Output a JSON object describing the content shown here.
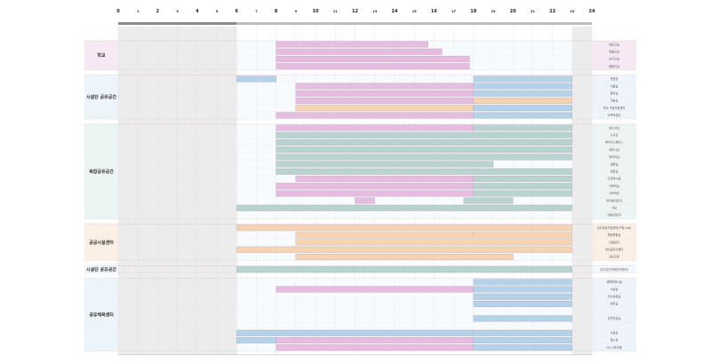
{
  "chart_data": {
    "type": "gantt",
    "x_range": [
      0,
      24
    ],
    "x_ticks": [
      "0",
      "1",
      "2",
      "3",
      "4",
      "5",
      "6",
      "7",
      "8",
      "9",
      "10",
      "11",
      "12",
      "13",
      "14",
      "15",
      "16",
      "17",
      "18",
      "19",
      "20",
      "21",
      "22",
      "23",
      "24"
    ],
    "colors": {
      "school": "#e6bde0",
      "private": "#b4d3e8",
      "life": "#b9d3d0",
      "public": "#f6d3b3",
      "group_school": "#f6e9f4",
      "group_private": "#edf4fa",
      "group_life": "#edf5f4",
      "group_public": "#fcefe5",
      "row_light": "#f3f8fb"
    },
    "groups": [
      {
        "name": "학교",
        "color_key": "school",
        "bg_key": "group_school",
        "rows": [
          {
            "label": "영유교실",
            "bars": [
              {
                "start": 8,
                "end": 15.7,
                "color": "school"
              }
            ]
          },
          {
            "label": "특별교실",
            "bars": [
              {
                "start": 8,
                "end": 16.4,
                "color": "school"
              }
            ]
          },
          {
            "label": "보건교실",
            "bars": [
              {
                "start": 8,
                "end": 17.8,
                "color": "school"
              }
            ]
          },
          {
            "label": "돌봄교실",
            "bars": [
              {
                "start": 8,
                "end": 17.8,
                "color": "school"
              }
            ]
          }
        ]
      },
      {
        "name": "시설단 공유공간",
        "color_key": "private",
        "bg_key": "group_private",
        "rows": [
          {
            "label": "운동장",
            "bars": [
              {
                "start": 6,
                "end": 8,
                "color": "private"
              },
              {
                "start": 18,
                "end": 23,
                "color": "private"
              }
            ]
          },
          {
            "label": "식물실",
            "bars": [
              {
                "start": 9,
                "end": 18,
                "color": "school"
              },
              {
                "start": 18,
                "end": 23,
                "color": "private"
              }
            ]
          },
          {
            "label": "음악실",
            "bars": [
              {
                "start": 9,
                "end": 18,
                "color": "school"
              },
              {
                "start": 18,
                "end": 23,
                "color": "private"
              }
            ]
          },
          {
            "label": "미술실",
            "bars": [
              {
                "start": 9,
                "end": 18,
                "color": "school"
              },
              {
                "start": 18,
                "end": 23,
                "color": "public"
              }
            ]
          },
          {
            "label": "학교 구청지원센터",
            "bars": [
              {
                "start": 9,
                "end": 18,
                "color": "public"
              },
              {
                "start": 18,
                "end": 23,
                "color": "private"
              }
            ]
          },
          {
            "label": "다목적강당",
            "bars": [
              {
                "start": 8,
                "end": 18,
                "color": "school"
              },
              {
                "start": 18,
                "end": 23,
                "color": "private"
              }
            ]
          }
        ]
      },
      {
        "name": "복합공유공간",
        "color_key": "life",
        "bg_key": "group_life",
        "rows": [
          {
            "label": "청소년실",
            "bars": [
              {
                "start": 8,
                "end": 18,
                "color": "school"
              },
              {
                "start": 18,
                "end": 23,
                "color": "life"
              }
            ]
          },
          {
            "label": "도서관",
            "bars": [
              {
                "start": 8,
                "end": 23,
                "color": "life"
              }
            ]
          },
          {
            "label": "메이커스페이스",
            "bars": [
              {
                "start": 8,
                "end": 23,
                "color": "life"
              }
            ]
          },
          {
            "label": "세미나실",
            "bars": [
              {
                "start": 8,
                "end": 23,
                "color": "life"
              }
            ]
          },
          {
            "label": "동아리실",
            "bars": [
              {
                "start": 8,
                "end": 23,
                "color": "life"
              }
            ]
          },
          {
            "label": "생활실",
            "bars": [
              {
                "start": 8,
                "end": 19,
                "color": "life"
              }
            ]
          },
          {
            "label": "체육실",
            "bars": [
              {
                "start": 8,
                "end": 23,
                "color": "life"
              }
            ]
          },
          {
            "label": "다목적시설",
            "bars": [
              {
                "start": 9,
                "end": 18,
                "color": "school"
              },
              {
                "start": 18,
                "end": 23,
                "color": "life"
              }
            ]
          },
          {
            "label": "다목적실",
            "bars": [
              {
                "start": 8,
                "end": 18,
                "color": "school"
              },
              {
                "start": 18,
                "end": 23,
                "color": "life"
              }
            ]
          },
          {
            "label": "다목적홀",
            "bars": [
              {
                "start": 8,
                "end": 18,
                "color": "school"
              },
              {
                "start": 18,
                "end": 23,
                "color": "life"
              }
            ]
          },
          {
            "label": "북카페라운지",
            "bars": [
              {
                "start": 12,
                "end": 13,
                "color": "school"
              },
              {
                "start": 17.5,
                "end": 20,
                "color": "life"
              }
            ]
          },
          {
            "label": "식당",
            "bars": [
              {
                "start": 6,
                "end": 23,
                "color": "life"
              }
            ]
          },
          {
            "label": "카페/라운지",
            "bars": []
          }
        ]
      },
      {
        "name": "공공시설센터",
        "color_key": "public",
        "bg_key": "group_public",
        "rows": [
          {
            "label": "임주공공지원센터(구청 Lab)",
            "bars": [
              {
                "start": 6,
                "end": 23,
                "color": "public"
              }
            ]
          },
          {
            "label": "행정복합실",
            "bars": [
              {
                "start": 9,
                "end": 18,
                "color": "public"
              },
              {
                "start": 18,
                "end": 23,
                "color": "public"
              }
            ]
          },
          {
            "label": "다함센터",
            "bars": [
              {
                "start": 9,
                "end": 23,
                "color": "public"
              }
            ]
          },
          {
            "label": "개인일자리센터",
            "bars": [
              {
                "start": 6,
                "end": 23,
                "color": "public"
              }
            ]
          },
          {
            "label": "공유주방",
            "bars": [
              {
                "start": 9,
                "end": 20,
                "color": "public"
              }
            ]
          }
        ]
      },
      {
        "name": "시설단 공유공간",
        "color_key": "life",
        "bg_key": "row_light",
        "rows": [
          {
            "label": "임주공간(마을관리협의)",
            "bars": [
              {
                "start": 6,
                "end": 23,
                "color": "life"
              }
            ]
          }
        ]
      },
      {
        "name": "공유체육센터",
        "color_key": "private",
        "bg_key": "group_private",
        "rows": [
          {
            "label": "생활문화시설",
            "bars": [
              {
                "start": 18,
                "end": 23,
                "color": "private"
              }
            ]
          },
          {
            "label": "수영장",
            "bars": [
              {
                "start": 8,
                "end": 18,
                "color": "school"
              },
              {
                "start": 18,
                "end": 23,
                "color": "private"
              }
            ]
          },
          {
            "label": "건식체육실",
            "bars": [
              {
                "start": 18,
                "end": 23,
                "color": "private"
              }
            ]
          },
          {
            "label": "체력실",
            "bars": [
              {
                "start": 18,
                "end": 23,
                "color": "private"
              }
            ]
          },
          {
            "label": "",
            "bars": []
          },
          {
            "label": "공연연습실",
            "bars": [
              {
                "start": 18,
                "end": 23,
                "color": "private"
              }
            ]
          },
          {
            "label": "",
            "bars": []
          },
          {
            "label": "수영장",
            "bars": [
              {
                "start": 6,
                "end": 18,
                "color": "private"
              },
              {
                "start": 18,
                "end": 23,
                "color": "private"
              }
            ]
          },
          {
            "label": "헬스장",
            "bars": [
              {
                "start": 6,
                "end": 8,
                "color": "private"
              },
              {
                "start": 8,
                "end": 18,
                "color": "school"
              },
              {
                "start": 18,
                "end": 23,
                "color": "private"
              }
            ]
          },
          {
            "label": "GX 스포츠룸",
            "bars": [
              {
                "start": 8,
                "end": 18,
                "color": "school"
              },
              {
                "start": 18,
                "end": 23,
                "color": "private"
              }
            ]
          }
        ]
      }
    ]
  }
}
